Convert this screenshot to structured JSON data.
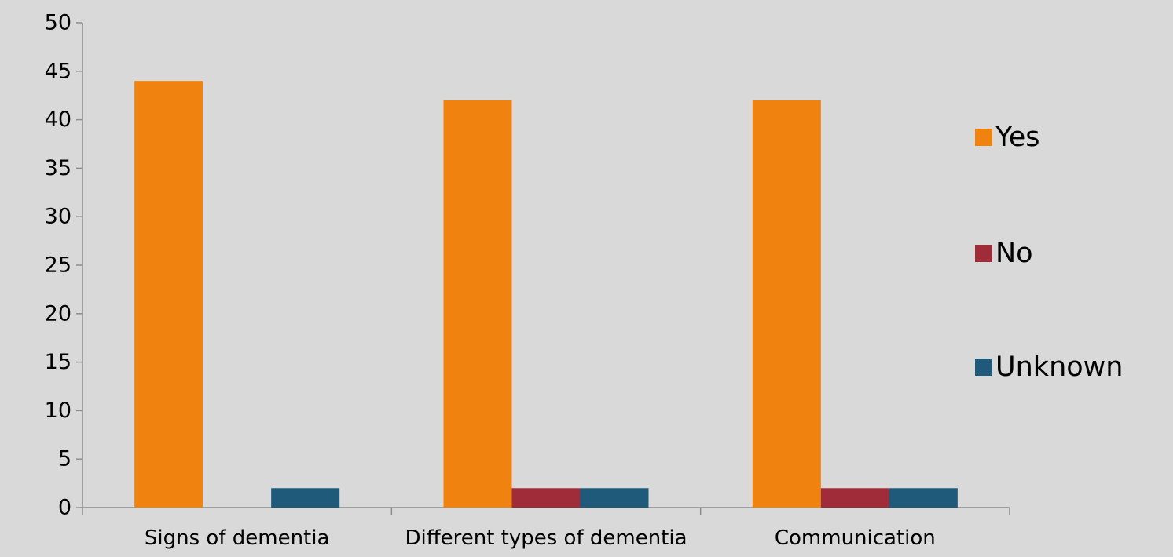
{
  "chart_data": {
    "type": "bar",
    "categories": [
      "Signs of dementia",
      "Different types of dementia",
      "Communication"
    ],
    "series": [
      {
        "name": "Yes",
        "color": "#f0820f",
        "values": [
          44,
          42,
          42
        ]
      },
      {
        "name": "No",
        "color": "#a02b39",
        "values": [
          0,
          2,
          2
        ]
      },
      {
        "name": "Unknown",
        "color": "#1f5a7a",
        "values": [
          2,
          2,
          2
        ]
      }
    ],
    "ylim": [
      0,
      50
    ],
    "yticks": [
      0,
      5,
      10,
      15,
      20,
      25,
      30,
      35,
      40,
      45,
      50
    ],
    "grid": false,
    "legend": "right"
  }
}
